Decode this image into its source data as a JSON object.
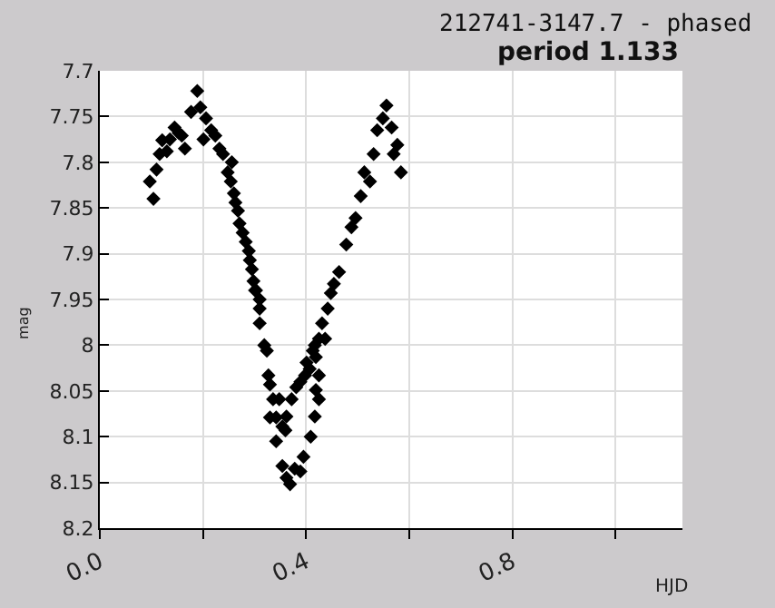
{
  "chart_data": {
    "type": "scatter",
    "title": "212741-3147.7 - phased",
    "subtitle": "period 1.133",
    "xlabel": "HJD",
    "ylabel": "mag",
    "x": [
      0.097,
      0.104,
      0.11,
      0.116,
      0.121,
      0.13,
      0.136,
      0.145,
      0.153,
      0.165,
      0.159,
      0.177,
      0.189,
      0.195,
      0.201,
      0.206,
      0.216,
      0.224,
      0.232,
      0.239,
      0.248,
      0.256,
      0.254,
      0.26,
      0.263,
      0.268,
      0.271,
      0.277,
      0.283,
      0.289,
      0.291,
      0.295,
      0.298,
      0.303,
      0.31,
      0.301,
      0.31,
      0.31,
      0.319,
      0.324,
      0.327,
      0.33,
      0.336,
      0.348,
      0.33,
      0.342,
      0.354,
      0.362,
      0.372,
      0.342,
      0.36,
      0.354,
      0.362,
      0.369,
      0.378,
      0.389,
      0.395,
      0.409,
      0.417,
      0.425,
      0.419,
      0.381,
      0.389,
      0.398,
      0.401,
      0.407,
      0.425,
      0.413,
      0.419,
      0.417,
      0.425,
      0.431,
      0.437,
      0.442,
      0.448,
      0.454,
      0.464,
      0.478,
      0.496,
      0.506,
      0.513,
      0.531,
      0.538,
      0.549,
      0.556,
      0.566,
      0.577,
      0.584,
      0.57,
      0.524,
      0.488
    ],
    "series": [
      {
        "color": "#000000",
        "values": [
          7.821,
          7.84,
          7.808,
          7.791,
          7.776,
          7.788,
          7.775,
          7.762,
          7.768,
          7.785,
          7.771,
          7.745,
          7.722,
          7.74,
          7.775,
          7.752,
          7.765,
          7.771,
          7.785,
          7.791,
          7.811,
          7.8,
          7.821,
          7.834,
          7.844,
          7.853,
          7.867,
          7.877,
          7.887,
          7.897,
          7.907,
          7.917,
          7.93,
          7.94,
          7.95,
          7.94,
          7.96,
          7.976,
          8.0,
          8.006,
          8.033,
          8.043,
          8.059,
          8.059,
          8.079,
          8.079,
          8.089,
          8.078,
          8.059,
          8.105,
          8.093,
          8.132,
          8.145,
          8.152,
          8.135,
          8.138,
          8.122,
          8.1,
          8.078,
          8.059,
          8.049,
          8.046,
          8.04,
          8.033,
          8.019,
          8.026,
          8.033,
          8.006,
          8.013,
          8.0,
          7.993,
          7.976,
          7.993,
          7.96,
          7.943,
          7.933,
          7.92,
          7.89,
          7.861,
          7.837,
          7.811,
          7.791,
          7.765,
          7.752,
          7.738,
          7.762,
          7.781,
          7.811,
          7.791,
          7.821,
          7.871
        ]
      }
    ],
    "marker": "diamond",
    "xlim": [
      0,
      1.13
    ],
    "xticks": [
      {
        "value": 0,
        "label": "0.0"
      },
      {
        "value": 0.2,
        "label": null
      },
      0.4,
      {
        "value": 0.6,
        "label": null
      },
      0.8,
      {
        "value": 1.0,
        "label": null
      }
    ],
    "ylim": [
      8.2,
      7.7
    ],
    "yticks": [
      7.7,
      7.75,
      7.8,
      7.85,
      7.9,
      7.95,
      8,
      8.05,
      8.1,
      8.15,
      8.2
    ],
    "grid": true
  }
}
